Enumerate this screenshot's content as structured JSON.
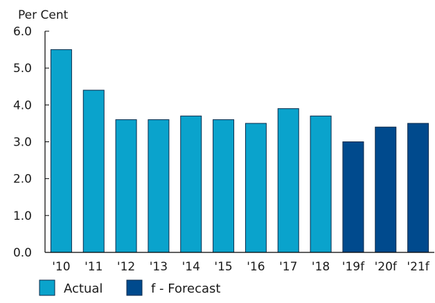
{
  "chart_data": {
    "type": "bar",
    "ylabel": "Per Cent",
    "ylim": [
      0,
      6
    ],
    "yticks": [
      "0.0",
      "1.0",
      "2.0",
      "3.0",
      "4.0",
      "5.0",
      "6.0"
    ],
    "grid": false,
    "categories": [
      "'10",
      "'11",
      "'12",
      "'13",
      "'14",
      "'15",
      "'16",
      "'17",
      "'18",
      "'19f",
      "'20f",
      "'21f"
    ],
    "values": [
      5.5,
      4.4,
      3.6,
      3.6,
      3.7,
      3.6,
      3.5,
      3.9,
      3.7,
      3.0,
      3.4,
      3.5
    ],
    "bar_kinds": [
      "actual",
      "actual",
      "actual",
      "actual",
      "actual",
      "actual",
      "actual",
      "actual",
      "actual",
      "forecast",
      "forecast",
      "forecast"
    ],
    "colors": {
      "actual": "#0aa3cc",
      "forecast": "#004a8d"
    },
    "legend": {
      "position": "bottom-left",
      "items": [
        {
          "kind": "actual",
          "label": "Actual"
        },
        {
          "kind": "forecast",
          "label": "f - Forecast"
        }
      ]
    }
  }
}
